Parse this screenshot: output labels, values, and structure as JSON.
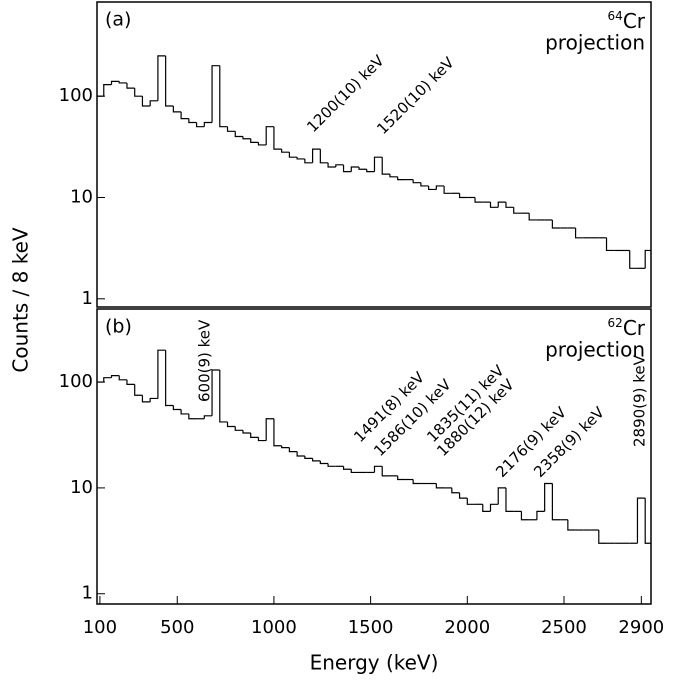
{
  "chart_data": [
    {
      "type": "histogram",
      "panel_label": "(a)",
      "nucleus_mass": "64",
      "nucleus_symbol": "Cr",
      "subtitle": "projection",
      "ylabel": "Counts / 8 keV",
      "log_y": true,
      "color": "#000000",
      "xlim": [
        85,
        2950
      ],
      "ylim": [
        0.83,
        850
      ],
      "yticks": [
        1,
        10,
        100
      ],
      "annotations": [
        "1200(10) keV",
        "1520(10) keV"
      ],
      "bins": [
        80,
        120,
        160,
        200,
        240,
        280,
        320,
        360,
        400,
        440,
        480,
        520,
        560,
        600,
        640,
        680,
        720,
        760,
        800,
        840,
        880,
        920,
        960,
        1000,
        1040,
        1080,
        1120,
        1160,
        1200,
        1240,
        1280,
        1320,
        1360,
        1400,
        1440,
        1480,
        1520,
        1560,
        1600,
        1640,
        1680,
        1720,
        1760,
        1800,
        1840,
        1880,
        1920,
        1960,
        2000,
        2040,
        2080,
        2120,
        2160,
        2200,
        2240,
        2280,
        2320,
        2360,
        2400,
        2440,
        2480,
        2520,
        2560,
        2600,
        2640,
        2680,
        2720,
        2760,
        2800,
        2840,
        2880,
        2920,
        2960
      ],
      "values": [
        100,
        130,
        140,
        135,
        120,
        100,
        80,
        90,
        250,
        80,
        70,
        60,
        55,
        50,
        55,
        200,
        50,
        45,
        40,
        38,
        35,
        33,
        50,
        30,
        28,
        25,
        24,
        22,
        30,
        22,
        20,
        21,
        18,
        20,
        19,
        18,
        25,
        17,
        16,
        15,
        15,
        14,
        13,
        12,
        13,
        11,
        11,
        10,
        10,
        9,
        9,
        8,
        9,
        8,
        7,
        7,
        6,
        6,
        6,
        5,
        5,
        5,
        4,
        4,
        4,
        4,
        3,
        3,
        3,
        2,
        2,
        3
      ]
    },
    {
      "type": "histogram",
      "panel_label": "(b)",
      "nucleus_mass": "62",
      "nucleus_symbol": "Cr",
      "subtitle": "projection",
      "xlabel": "Energy (keV)",
      "log_y": true,
      "color": "#000000",
      "xlim": [
        85,
        2950
      ],
      "ylim": [
        0.8,
        490
      ],
      "yticks": [
        1,
        10,
        100
      ],
      "xticks": [
        100,
        500,
        1000,
        1500,
        2000,
        2500,
        2900
      ],
      "annotations": [
        "600(9) keV",
        "1491(8) keV",
        "1586(10) keV",
        "1835(11) keV",
        "1880(12) keV",
        "2176(9) keV",
        "2358(9) keV",
        "2890(9) keV"
      ],
      "bins": [
        80,
        120,
        160,
        200,
        240,
        280,
        320,
        360,
        400,
        440,
        480,
        520,
        560,
        600,
        640,
        680,
        720,
        760,
        800,
        840,
        880,
        920,
        960,
        1000,
        1040,
        1080,
        1120,
        1160,
        1200,
        1240,
        1280,
        1320,
        1360,
        1400,
        1440,
        1480,
        1520,
        1560,
        1600,
        1640,
        1680,
        1720,
        1760,
        1800,
        1840,
        1880,
        1920,
        1960,
        2000,
        2040,
        2080,
        2120,
        2160,
        2200,
        2240,
        2280,
        2320,
        2360,
        2400,
        2440,
        2480,
        2520,
        2560,
        2600,
        2640,
        2680,
        2720,
        2760,
        2800,
        2840,
        2880,
        2920,
        2960
      ],
      "values": [
        100,
        110,
        115,
        105,
        95,
        75,
        65,
        70,
        200,
        60,
        55,
        50,
        45,
        45,
        48,
        130,
        42,
        38,
        35,
        33,
        30,
        28,
        45,
        25,
        24,
        22,
        20,
        19,
        18,
        17,
        16,
        16,
        15,
        14,
        14,
        14,
        16,
        13,
        13,
        12,
        12,
        11,
        11,
        11,
        10,
        10,
        9,
        8,
        7,
        7,
        6,
        7,
        10,
        6,
        6,
        5,
        5,
        6,
        11,
        5,
        5,
        4,
        4,
        4,
        4,
        3,
        3,
        3,
        3,
        3,
        8,
        3
      ]
    }
  ]
}
